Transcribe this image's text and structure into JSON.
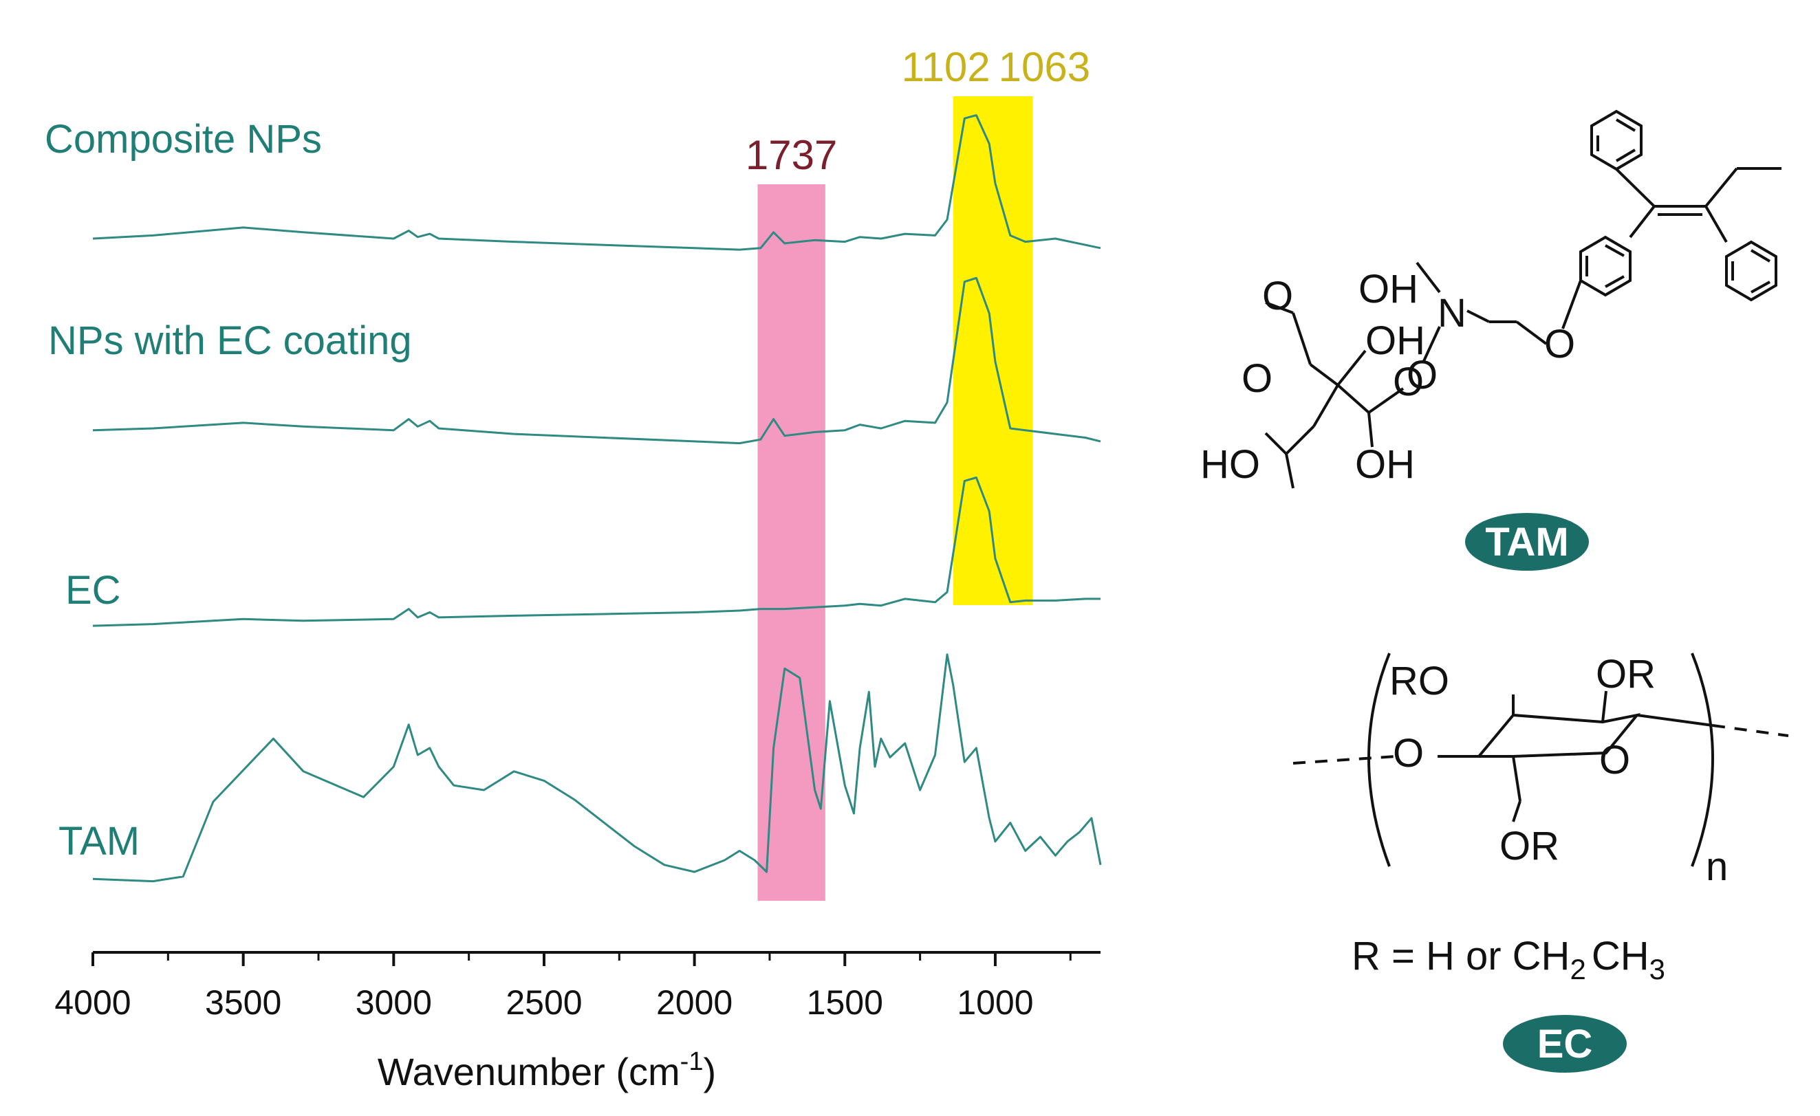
{
  "chart_data": {
    "type": "line",
    "title": "",
    "xlabel": "Wavenumber (cm",
    "xlabel_sup": "-1",
    "xlabel_close": ")",
    "ylabel": "",
    "xlim": [
      4000,
      650
    ],
    "xticks": [
      4000,
      3500,
      3000,
      2500,
      2000,
      1500,
      1000
    ],
    "grid": false,
    "line_color": "#2e8a82",
    "series": [
      {
        "name": "Composite NPs",
        "x": [
          4000,
          3800,
          3500,
          3300,
          3000,
          2950,
          2920,
          2880,
          2850,
          2600,
          2300,
          2000,
          1850,
          1780,
          1737,
          1700,
          1600,
          1500,
          1450,
          1380,
          1300,
          1200,
          1160,
          1102,
          1063,
          1020,
          1000,
          950,
          900,
          800,
          700,
          650
        ],
        "y": [
          0.1,
          0.12,
          0.17,
          0.14,
          0.1,
          0.15,
          0.11,
          0.13,
          0.1,
          0.08,
          0.06,
          0.04,
          0.03,
          0.04,
          0.14,
          0.07,
          0.09,
          0.08,
          0.11,
          0.1,
          0.13,
          0.12,
          0.22,
          0.86,
          0.88,
          0.7,
          0.45,
          0.12,
          0.08,
          0.1,
          0.06,
          0.04
        ]
      },
      {
        "name": "NPs with EC coating",
        "x": [
          4000,
          3800,
          3500,
          3300,
          3000,
          2950,
          2920,
          2880,
          2850,
          2600,
          2300,
          2000,
          1850,
          1780,
          1737,
          1700,
          1600,
          1500,
          1450,
          1380,
          1300,
          1200,
          1160,
          1102,
          1063,
          1020,
          1000,
          950,
          900,
          800,
          700,
          650
        ],
        "y": [
          0.09,
          0.1,
          0.13,
          0.11,
          0.09,
          0.15,
          0.11,
          0.14,
          0.1,
          0.07,
          0.05,
          0.03,
          0.02,
          0.04,
          0.15,
          0.06,
          0.08,
          0.09,
          0.12,
          0.1,
          0.14,
          0.13,
          0.24,
          0.89,
          0.91,
          0.72,
          0.46,
          0.1,
          0.09,
          0.07,
          0.05,
          0.03
        ]
      },
      {
        "name": "EC",
        "x": [
          4000,
          3800,
          3500,
          3300,
          3000,
          2950,
          2920,
          2880,
          2850,
          2600,
          2300,
          2000,
          1850,
          1780,
          1737,
          1700,
          1600,
          1500,
          1450,
          1380,
          1300,
          1200,
          1160,
          1102,
          1063,
          1020,
          1000,
          950,
          900,
          800,
          700,
          650
        ],
        "y": [
          0.02,
          0.03,
          0.06,
          0.05,
          0.06,
          0.12,
          0.07,
          0.1,
          0.07,
          0.08,
          0.09,
          0.1,
          0.11,
          0.12,
          0.12,
          0.12,
          0.13,
          0.14,
          0.15,
          0.14,
          0.18,
          0.16,
          0.22,
          0.88,
          0.9,
          0.7,
          0.42,
          0.16,
          0.17,
          0.17,
          0.18,
          0.18
        ]
      },
      {
        "name": "TAM",
        "x": [
          4000,
          3800,
          3700,
          3600,
          3400,
          3300,
          3100,
          3000,
          2950,
          2920,
          2880,
          2850,
          2800,
          2700,
          2600,
          2500,
          2400,
          2300,
          2200,
          2100,
          2000,
          1900,
          1850,
          1800,
          1760,
          1737,
          1700,
          1650,
          1600,
          1580,
          1550,
          1500,
          1470,
          1450,
          1420,
          1400,
          1380,
          1350,
          1300,
          1250,
          1200,
          1160,
          1140,
          1102,
          1063,
          1020,
          1000,
          950,
          900,
          850,
          800,
          760,
          720,
          680,
          650
        ],
        "y": [
          0.02,
          0.01,
          0.03,
          0.35,
          0.62,
          0.48,
          0.37,
          0.5,
          0.68,
          0.55,
          0.58,
          0.5,
          0.42,
          0.4,
          0.48,
          0.44,
          0.36,
          0.26,
          0.16,
          0.08,
          0.05,
          0.1,
          0.14,
          0.1,
          0.05,
          0.58,
          0.92,
          0.88,
          0.4,
          0.32,
          0.78,
          0.42,
          0.3,
          0.58,
          0.82,
          0.5,
          0.62,
          0.54,
          0.6,
          0.4,
          0.55,
          0.98,
          0.85,
          0.52,
          0.58,
          0.28,
          0.18,
          0.26,
          0.14,
          0.2,
          0.12,
          0.18,
          0.22,
          0.28,
          0.08
        ]
      }
    ],
    "highlights": [
      {
        "label": "1737",
        "from": 1790,
        "to": 1565,
        "color": "#f49ac0",
        "label_color": "#7a1f2b"
      },
      {
        "label": "1102",
        "label2": "1063",
        "from": 1140,
        "to": 875,
        "color": "#fff100",
        "label_color": "#c7b21c"
      }
    ]
  },
  "structures": {
    "tam": {
      "badge": "TAM",
      "labels": [
        "OH",
        "OH",
        "OH",
        "HO",
        "N",
        "O",
        "O",
        "O",
        "O",
        "O"
      ]
    },
    "ec": {
      "badge": "EC",
      "labels": [
        "RO",
        "OR",
        "O",
        "O",
        "OR",
        "n"
      ],
      "formula": "R = H or CH",
      "formula_sub1": "2",
      "formula_mid": "CH",
      "formula_sub2": "3"
    }
  },
  "colors": {
    "teal_text": "#1f7e76",
    "badge": "#1b6e68",
    "axis": "#111111"
  }
}
